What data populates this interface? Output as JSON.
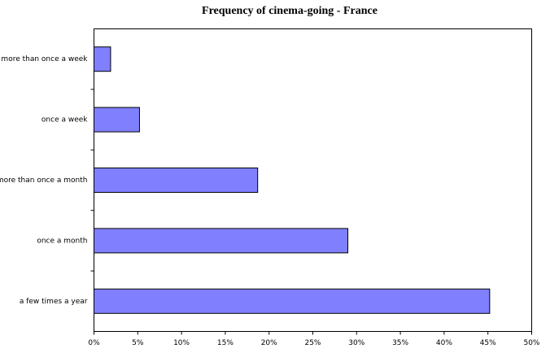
{
  "chart_data": {
    "type": "bar",
    "orientation": "horizontal",
    "title": "Frequency of cinema-going - France",
    "categories": [
      "more than once a week",
      "once a week",
      "more than once a month",
      "once a month",
      "a few times a year"
    ],
    "values": [
      1.9,
      5.2,
      18.7,
      29.0,
      45.2
    ],
    "color": "#8080ff",
    "xlim": [
      0,
      50
    ],
    "xticks": [
      {
        "value": 0,
        "label": "0%"
      },
      {
        "value": 5,
        "label": "5%"
      },
      {
        "value": 10,
        "label": "10%"
      },
      {
        "value": 15,
        "label": "15%"
      },
      {
        "value": 20,
        "label": "20%"
      },
      {
        "value": 25,
        "label": "25%"
      },
      {
        "value": 30,
        "label": "30%"
      },
      {
        "value": 35,
        "label": "35%"
      },
      {
        "value": 40,
        "label": "40%"
      },
      {
        "value": 45,
        "label": "45%"
      },
      {
        "value": 50,
        "label": "50%"
      }
    ]
  }
}
